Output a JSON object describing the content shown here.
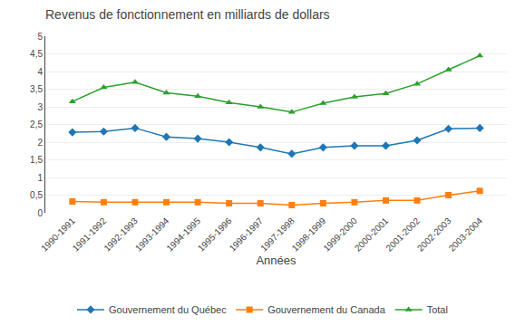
{
  "chart_data": {
    "type": "line",
    "title": "Revenus de fonctionnement en milliards de dollars",
    "xlabel": "Années",
    "categories": [
      "1990-1991",
      "1991-1992",
      "1992-1993",
      "1993-1994",
      "1994-1995",
      "1995-1996",
      "1996-1997",
      "1997-1998",
      "1998-1999",
      "1999-2000",
      "2000-2001",
      "2001-2002",
      "2002-2003",
      "2003-2004"
    ],
    "series": [
      {
        "name": "Gouvernement du Québec",
        "marker": "diamond",
        "values": [
          2.28,
          2.3,
          2.4,
          2.15,
          2.1,
          2.0,
          1.85,
          1.67,
          1.85,
          1.9,
          1.9,
          2.05,
          2.38,
          2.4
        ]
      },
      {
        "name": "Gouvernement du Canada",
        "marker": "square",
        "values": [
          0.32,
          0.3,
          0.3,
          0.3,
          0.3,
          0.27,
          0.27,
          0.22,
          0.27,
          0.3,
          0.35,
          0.35,
          0.5,
          0.62
        ]
      },
      {
        "name": "Total",
        "marker": "triangle-up",
        "values": [
          3.15,
          3.55,
          3.7,
          3.4,
          3.3,
          3.12,
          3.0,
          2.85,
          3.1,
          3.28,
          3.38,
          3.65,
          4.05,
          4.45
        ]
      }
    ],
    "ylim": [
      0,
      5
    ],
    "yticks": [
      0,
      {
        "value": 0.5,
        "label": "0,5"
      },
      1,
      {
        "value": 1.5,
        "label": "1,5"
      },
      2,
      {
        "value": 2.5,
        "label": "2,5"
      },
      3,
      {
        "value": 3.5,
        "label": "3,5"
      },
      4,
      {
        "value": 4.5,
        "label": "4,5"
      },
      5
    ],
    "grid": true,
    "legend": "bottom"
  }
}
